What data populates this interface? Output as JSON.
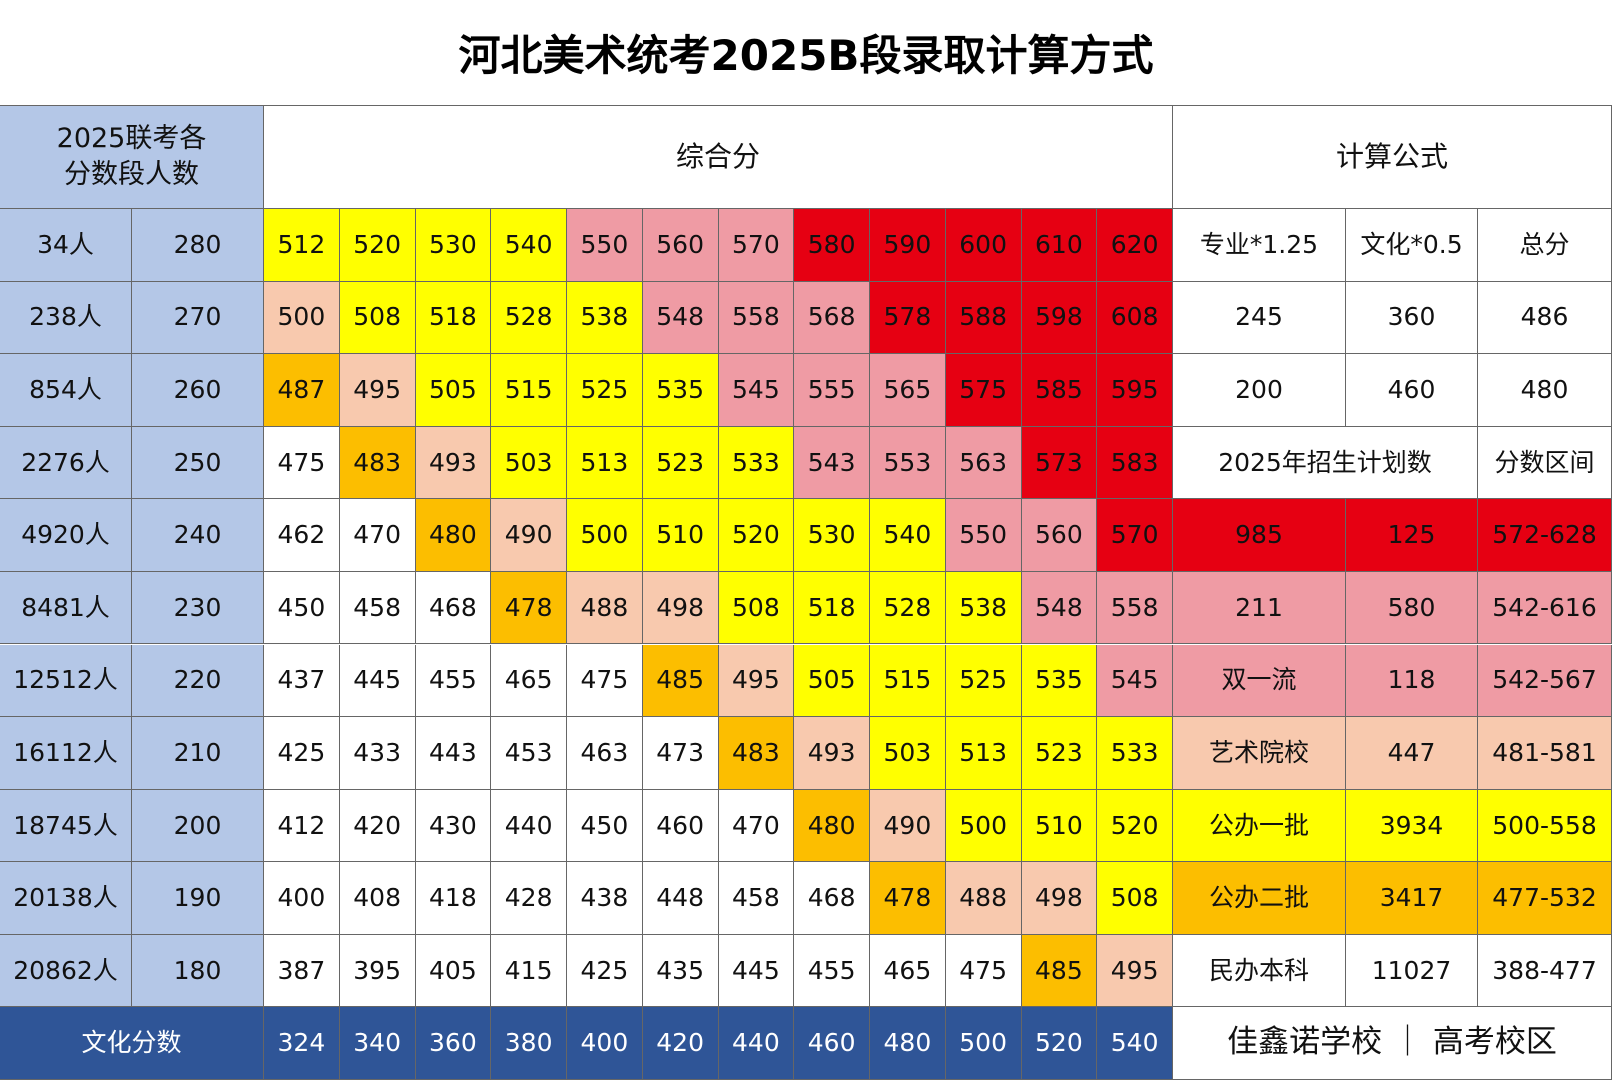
{
  "title": "河北美术统考2025B段录取计算方式",
  "header": {
    "count_label": [
      "2025联考各",
      "分数段人数"
    ],
    "composite": "综合分",
    "formula": "计算公式"
  },
  "palette": {
    "W": "#ffffff",
    "Y": "#ffff00",
    "P": "#ef9ba4",
    "R": "#e60012",
    "O": "#fcbe00",
    "S": "#f8c9ae"
  },
  "rows": [
    {
      "count": "34人",
      "score": 280,
      "composite": [
        512,
        520,
        530,
        540,
        550,
        560,
        570,
        580,
        590,
        600,
        610,
        620
      ],
      "fills": "YYYYPPPRRRRR",
      "right": [
        "专业*1.25",
        "文化*0.5",
        "总分"
      ],
      "right_fill": "W"
    },
    {
      "count": "238人",
      "score": 270,
      "composite": [
        500,
        508,
        518,
        528,
        538,
        548,
        558,
        568,
        578,
        588,
        598,
        608
      ],
      "fills": "SYYYYPPPRRRR",
      "right": [
        245,
        360,
        486
      ],
      "right_fill": "W"
    },
    {
      "count": "854人",
      "score": 260,
      "composite": [
        487,
        495,
        505,
        515,
        525,
        535,
        545,
        555,
        565,
        575,
        585,
        595
      ],
      "fills": "OSYYYYPPPRRR",
      "right": [
        200,
        460,
        480
      ],
      "right_fill": "W"
    },
    {
      "count": "2276人",
      "score": 250,
      "composite": [
        475,
        483,
        493,
        503,
        513,
        523,
        533,
        543,
        553,
        563,
        573,
        583
      ],
      "fills": "WOSYYYYPPPRR",
      "right": [
        "2025年招生计划数",
        "分数区间"
      ],
      "right_fill": "W"
    },
    {
      "count": "4920人",
      "score": 240,
      "composite": [
        462,
        470,
        480,
        490,
        500,
        510,
        520,
        530,
        540,
        550,
        560,
        570
      ],
      "fills": "WWOSYYYYYPPR",
      "right": [
        985,
        125,
        "572-628"
      ],
      "right_fill": "R"
    },
    {
      "count": "8481人",
      "score": 230,
      "composite": [
        450,
        458,
        468,
        478,
        488,
        498,
        508,
        518,
        528,
        538,
        548,
        558
      ],
      "fills": "WWWOSSYYYYPP",
      "right": [
        211,
        580,
        "542-616"
      ],
      "right_fill": "P"
    },
    {
      "count": "12512人",
      "score": 220,
      "composite": [
        437,
        445,
        455,
        465,
        475,
        485,
        495,
        505,
        515,
        525,
        535,
        545
      ],
      "fills": "WWWWWOSYYYYP",
      "right": [
        "双一流",
        118,
        "542-567"
      ],
      "right_fill": "P"
    },
    {
      "count": "16112人",
      "score": 210,
      "composite": [
        425,
        433,
        443,
        453,
        463,
        473,
        483,
        493,
        503,
        513,
        523,
        533
      ],
      "fills": "WWWWWWOSYYYY",
      "right": [
        "艺术院校",
        447,
        "481-581"
      ],
      "right_fill": "S"
    },
    {
      "count": "18745人",
      "score": 200,
      "composite": [
        412,
        420,
        430,
        440,
        450,
        460,
        470,
        480,
        490,
        500,
        510,
        520
      ],
      "fills": "WWWWWWWOSYYY",
      "right": [
        "公办一批",
        3934,
        "500-558"
      ],
      "right_fill": "Y"
    },
    {
      "count": "20138人",
      "score": 190,
      "composite": [
        400,
        408,
        418,
        428,
        438,
        448,
        458,
        468,
        478,
        488,
        498,
        508
      ],
      "fills": "WWWWWWWWOSSY",
      "right": [
        "公办二批",
        3417,
        "477-532"
      ],
      "right_fill": "O"
    },
    {
      "count": "20862人",
      "score": 180,
      "composite": [
        387,
        395,
        405,
        415,
        425,
        435,
        445,
        455,
        465,
        475,
        485,
        495
      ],
      "fills": "WWWWWWWWWWOS",
      "right": [
        "民办本科",
        11027,
        "388-477"
      ],
      "right_fill": "W"
    }
  ],
  "footer": {
    "label": "文化分数",
    "values": [
      324,
      340,
      360,
      380,
      400,
      420,
      440,
      460,
      480,
      500,
      520,
      540
    ],
    "brand": "佳鑫诺学校 ｜ 高考校区"
  }
}
